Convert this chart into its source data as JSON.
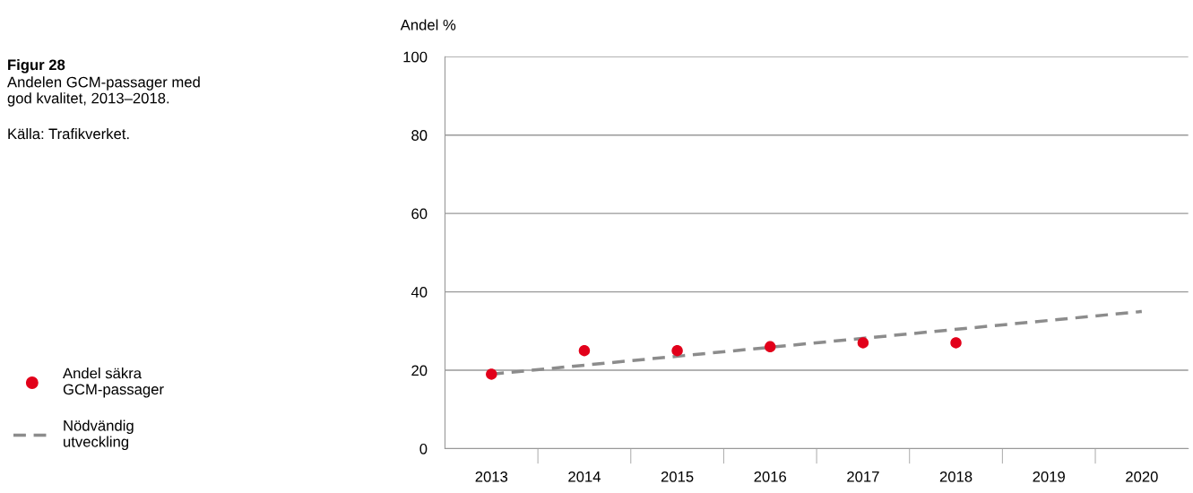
{
  "chart_data": {
    "type": "scatter",
    "title": "Figur 28",
    "subtitle": "Andelen GCM-passager med\ngod kvalitet, 2013–2018.",
    "annotations": [
      "Källa: Trafikverket."
    ],
    "ylabel": "Andel %",
    "categories": [
      "2013",
      "2014",
      "2015",
      "2016",
      "2017",
      "2018",
      "2019",
      "2020"
    ],
    "series": [
      {
        "name": "Andel säkra\nGCM-passager",
        "color": "#e2001a",
        "marker": "circle",
        "values": [
          19,
          25,
          25,
          26,
          27,
          27,
          null,
          null
        ]
      },
      {
        "name": "Nödvändig\nutveckling",
        "type": "line",
        "color": "#8c8c8c",
        "line_style": "dashed",
        "marker": "none",
        "values": [
          19,
          null,
          null,
          null,
          null,
          null,
          null,
          35
        ]
      }
    ],
    "ylim": [
      0,
      100
    ],
    "yticks": [
      0,
      20,
      40,
      60,
      80,
      100
    ],
    "grid": "y",
    "legend": "left"
  }
}
